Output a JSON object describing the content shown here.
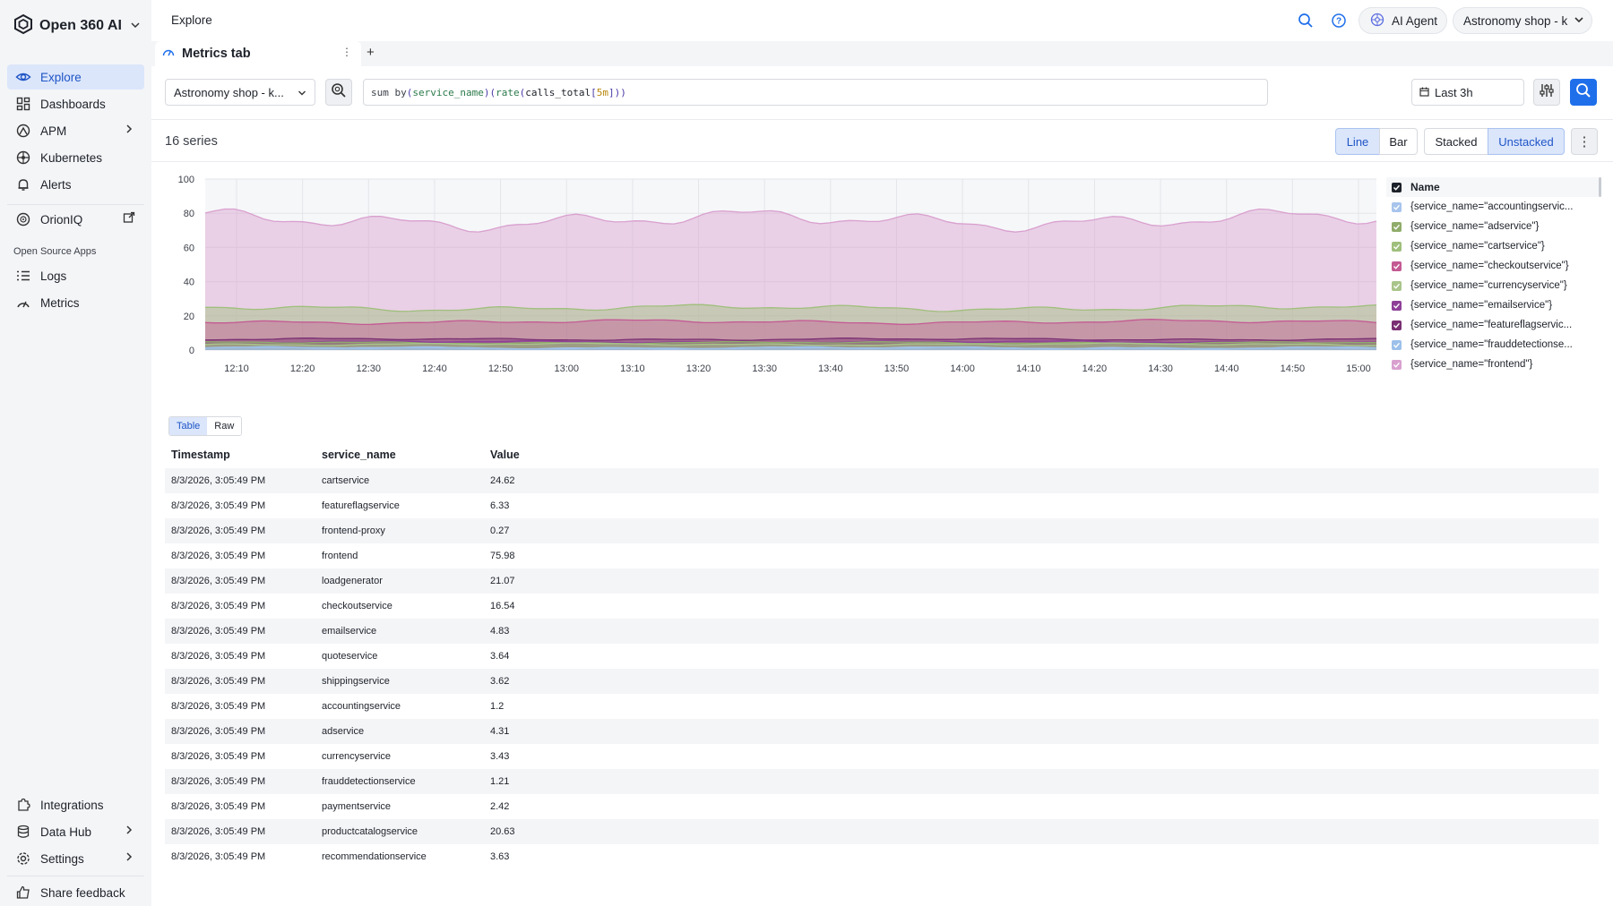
{
  "app": {
    "name": "Open 360 AI"
  },
  "sidebar": {
    "items": [
      {
        "label": "Explore",
        "icon": "eye-icon"
      },
      {
        "label": "Dashboards",
        "icon": "dashboard-icon"
      },
      {
        "label": "APM",
        "icon": "apm-icon"
      },
      {
        "label": "Kubernetes",
        "icon": "kubernetes-icon"
      },
      {
        "label": "Alerts",
        "icon": "bell-icon"
      },
      {
        "label": "OrionIQ",
        "icon": "orion-icon"
      }
    ],
    "section_label": "Open Source Apps",
    "apps": [
      {
        "label": "Logs",
        "icon": "logs-icon"
      },
      {
        "label": "Metrics",
        "icon": "metrics-icon"
      }
    ],
    "bottom_items": [
      {
        "label": "Integrations",
        "icon": "puzzle-icon"
      },
      {
        "label": "Data Hub",
        "icon": "database-icon"
      },
      {
        "label": "Settings",
        "icon": "gear-icon"
      },
      {
        "label": "Share feedback",
        "icon": "thumbs-up-icon"
      }
    ]
  },
  "topbar": {
    "breadcrumb": "Explore",
    "ai_agent_label": "AI Agent",
    "workspace_label": "Astronomy shop - k"
  },
  "tabs": [
    {
      "label": "Metrics tab"
    }
  ],
  "query": {
    "datasource": "Astronomy shop - k...",
    "parts": [
      "sum by",
      " (",
      "service_name",
      ") ",
      "(",
      "rate",
      "(",
      "calls_total",
      "[",
      "5m",
      "]",
      "))"
    ],
    "time_range": "Last 3h"
  },
  "results": {
    "series_count": "16 series",
    "chart_type_options": [
      "Line",
      "Bar"
    ],
    "selected_chart_type": "Line",
    "stack_options": [
      "Stacked",
      "Unstacked"
    ],
    "selected_stack": "Unstacked"
  },
  "chart_data": {
    "type": "area",
    "y_ticks": [
      "0",
      "20",
      "40",
      "60",
      "80",
      "100"
    ],
    "ylim": [
      0,
      100
    ],
    "x_ticks": [
      "12:10",
      "12:20",
      "12:30",
      "12:40",
      "12:50",
      "13:00",
      "13:10",
      "13:20",
      "13:30",
      "13:40",
      "13:50",
      "14:00",
      "14:10",
      "14:20",
      "14:30",
      "14:40",
      "14:50",
      "15:00"
    ],
    "grid": true,
    "legend_position": "right",
    "legend_header": "Name",
    "series": [
      {
        "name": "{service_name=\"accountingservic...",
        "color": "#a7c4ec",
        "approx_level": 1.2
      },
      {
        "name": "{service_name=\"adservice\"}",
        "color": "#8fac6a",
        "approx_level": 4.3
      },
      {
        "name": "{service_name=\"cartservice\"}",
        "color": "#9fbf7c",
        "approx_level": 24.6
      },
      {
        "name": "{service_name=\"checkoutservice\"}",
        "color": "#c45a94",
        "approx_level": 16.5
      },
      {
        "name": "{service_name=\"currencyservice\"}",
        "color": "#a9c58a",
        "approx_level": 3.4
      },
      {
        "name": "{service_name=\"emailservice\"}",
        "color": "#8e3f98",
        "approx_level": 4.8
      },
      {
        "name": "{service_name=\"featureflagservic...",
        "color": "#7a2f72",
        "approx_level": 6.3
      },
      {
        "name": "{service_name=\"frauddetectionse...",
        "color": "#9cc0ea",
        "approx_level": 1.2
      },
      {
        "name": "{service_name=\"frontend\"}",
        "color": "#d9a0cf",
        "approx_level": 76.0
      }
    ]
  },
  "table": {
    "view_tabs": [
      "Table",
      "Raw"
    ],
    "selected_view": "Table",
    "columns": [
      "Timestamp",
      "service_name",
      "Value"
    ],
    "rows": [
      [
        "8/3/2026, 3:05:49 PM",
        "cartservice",
        "24.62"
      ],
      [
        "8/3/2026, 3:05:49 PM",
        "featureflagservice",
        "6.33"
      ],
      [
        "8/3/2026, 3:05:49 PM",
        "frontend-proxy",
        "0.27"
      ],
      [
        "8/3/2026, 3:05:49 PM",
        "frontend",
        "75.98"
      ],
      [
        "8/3/2026, 3:05:49 PM",
        "loadgenerator",
        "21.07"
      ],
      [
        "8/3/2026, 3:05:49 PM",
        "checkoutservice",
        "16.54"
      ],
      [
        "8/3/2026, 3:05:49 PM",
        "emailservice",
        "4.83"
      ],
      [
        "8/3/2026, 3:05:49 PM",
        "quoteservice",
        "3.64"
      ],
      [
        "8/3/2026, 3:05:49 PM",
        "shippingservice",
        "3.62"
      ],
      [
        "8/3/2026, 3:05:49 PM",
        "accountingservice",
        "1.2"
      ],
      [
        "8/3/2026, 3:05:49 PM",
        "adservice",
        "4.31"
      ],
      [
        "8/3/2026, 3:05:49 PM",
        "currencyservice",
        "3.43"
      ],
      [
        "8/3/2026, 3:05:49 PM",
        "frauddetectionservice",
        "1.21"
      ],
      [
        "8/3/2026, 3:05:49 PM",
        "paymentservice",
        "2.42"
      ],
      [
        "8/3/2026, 3:05:49 PM",
        "productcatalogservice",
        "20.63"
      ],
      [
        "8/3/2026, 3:05:49 PM",
        "recommendationservice",
        "3.63"
      ]
    ]
  },
  "colors": {
    "accent": "#1f6feb",
    "accent_bg": "#dbe6fb",
    "sidebar_bg": "#f4f5f7"
  }
}
